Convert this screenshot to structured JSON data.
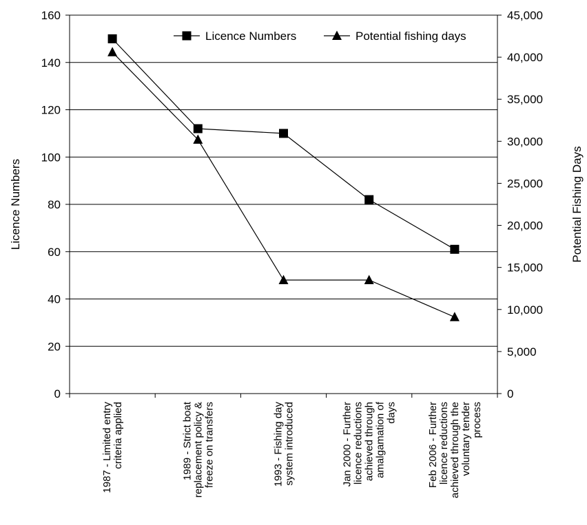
{
  "chart_data": {
    "type": "line",
    "categories": [
      [
        "1987 - Limited entry",
        "criteria applied"
      ],
      [
        "1989 - Strict boat",
        "replacement policy &",
        "freeze on transfers"
      ],
      [
        "1993 - Fishing day",
        "system introduced"
      ],
      [
        "Jan 2000 - Further",
        "licence reductions",
        "achieved through",
        "amalgamation of",
        "days"
      ],
      [
        "Feb 2006 - Further",
        "licence reductions",
        "achieved through the",
        "voluntary tender",
        "process"
      ]
    ],
    "series": [
      {
        "name": "Licence Numbers",
        "axis": "left",
        "marker": "square",
        "values": [
          150,
          112,
          110,
          82,
          61
        ]
      },
      {
        "name": "Potential fishing days",
        "axis": "right",
        "marker": "triangle",
        "values": [
          40600,
          30200,
          13500,
          13500,
          9100
        ]
      }
    ],
    "ylabel": "Licence Numbers",
    "y2label": "Potential Fishing Days",
    "ylim": [
      0,
      160
    ],
    "yticks": [
      0,
      20,
      40,
      60,
      80,
      100,
      120,
      140,
      160
    ],
    "y2lim": [
      0,
      45000
    ],
    "y2ticks": [
      "0",
      "5,000",
      "10,000",
      "15,000",
      "20,000",
      "25,000",
      "30,000",
      "35,000",
      "40,000",
      "45,000"
    ],
    "grid": true,
    "legend": "top-right"
  }
}
